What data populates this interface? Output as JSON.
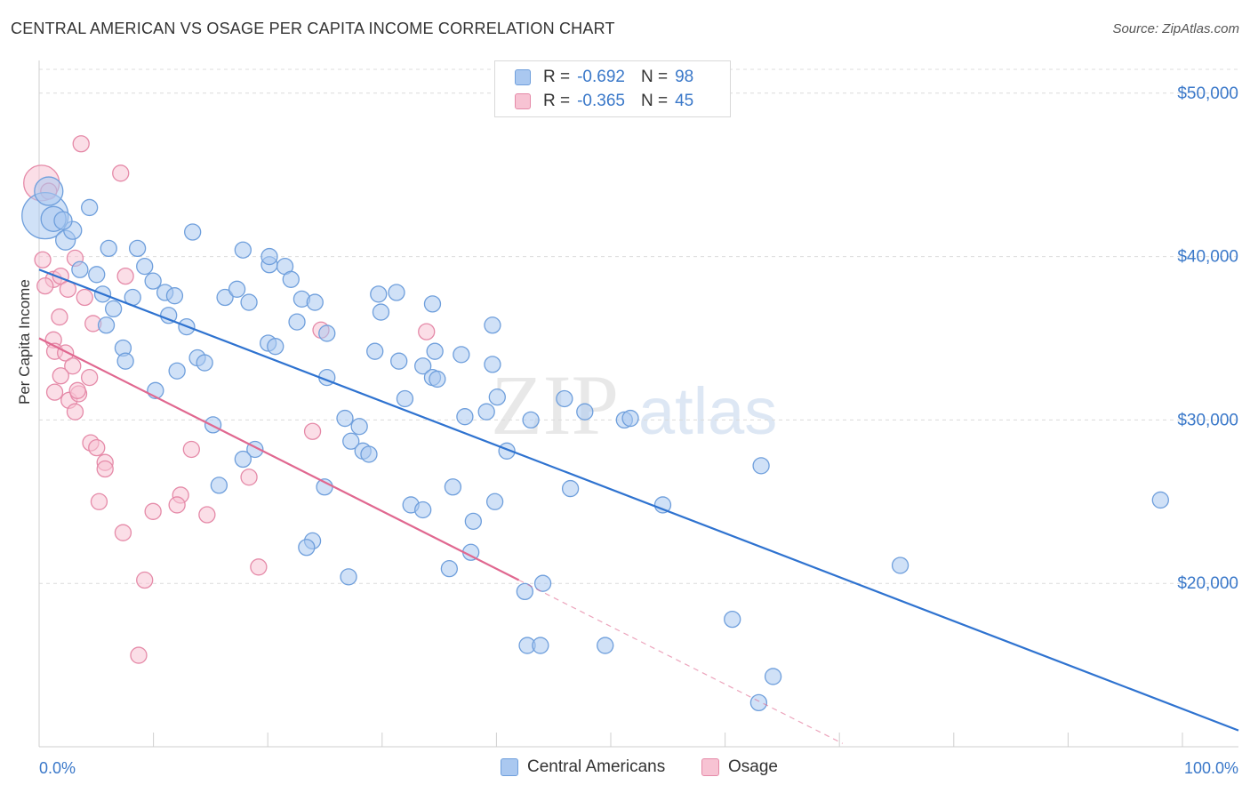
{
  "title": "CENTRAL AMERICAN VS OSAGE PER CAPITA INCOME CORRELATION CHART",
  "source": "Source: ZipAtlas.com",
  "watermark": {
    "zip": "ZIP",
    "atlas": "atlas"
  },
  "legend": {
    "rows": [
      {
        "r_label": "R =",
        "r_value": "-0.692",
        "n_label": "N =",
        "n_value": "98",
        "color": "#aac8f0",
        "border": "#6f9fdc"
      },
      {
        "r_label": "R =",
        "r_value": "-0.365",
        "n_label": "N =",
        "n_value": "45",
        "color": "#f7c3d3",
        "border": "#e58aa8"
      }
    ]
  },
  "bottom_legend": [
    {
      "label": "Central Americans",
      "color": "#aac8f0",
      "border": "#6f9fdc"
    },
    {
      "label": "Osage",
      "color": "#f7c3d3",
      "border": "#e58aa8"
    }
  ],
  "chart_data": {
    "type": "scatter",
    "title": "CENTRAL AMERICAN VS OSAGE PER CAPITA INCOME CORRELATION CHART",
    "xlabel": "",
    "ylabel": "Per Capita Income",
    "xlim": [
      0,
      100
    ],
    "ylim": [
      10000,
      52000
    ],
    "x_tick_labels": [
      "0.0%",
      "100.0%"
    ],
    "y_ticks": [
      20000,
      30000,
      40000,
      50000
    ],
    "y_tick_labels": [
      "$20,000",
      "$30,000",
      "$40,000",
      "$50,000"
    ],
    "grid": true,
    "series": [
      {
        "name": "Central Americans",
        "color": "#aac8f0",
        "stroke": "#6f9fdc",
        "line_color": "#2f73d0",
        "trend": {
          "x": [
            0,
            100
          ],
          "y": [
            39200,
            11000
          ]
        },
        "points": [
          [
            0.5,
            42500,
            26
          ],
          [
            0.8,
            44000,
            16
          ],
          [
            1.2,
            42300,
            14
          ],
          [
            2.2,
            41000,
            11
          ],
          [
            2.8,
            41600,
            10
          ],
          [
            2.0,
            42200,
            10
          ],
          [
            4.2,
            43000,
            9
          ],
          [
            3.4,
            39200,
            9
          ],
          [
            4.8,
            38900,
            9
          ],
          [
            5.8,
            40500,
            9
          ],
          [
            8.2,
            40500,
            9
          ],
          [
            12.8,
            41500,
            9
          ],
          [
            17.0,
            40400,
            9
          ],
          [
            19.2,
            39500,
            9
          ],
          [
            19.2,
            40000,
            9
          ],
          [
            20.5,
            39400,
            9
          ],
          [
            21.0,
            38600,
            9
          ],
          [
            8.8,
            39400,
            9
          ],
          [
            9.5,
            38500,
            9
          ],
          [
            10.5,
            37800,
            9
          ],
          [
            11.3,
            37600,
            9
          ],
          [
            7.8,
            37500,
            9
          ],
          [
            5.3,
            37700,
            9
          ],
          [
            6.2,
            36800,
            9
          ],
          [
            5.6,
            35800,
            9
          ],
          [
            10.8,
            36400,
            9
          ],
          [
            12.3,
            35700,
            9
          ],
          [
            15.5,
            37500,
            9
          ],
          [
            16.5,
            38000,
            9
          ],
          [
            17.5,
            37200,
            9
          ],
          [
            21.5,
            36000,
            9
          ],
          [
            21.9,
            37400,
            9
          ],
          [
            23.0,
            37200,
            9
          ],
          [
            24.0,
            35300,
            9
          ],
          [
            28.3,
            37700,
            9
          ],
          [
            29.8,
            37800,
            9
          ],
          [
            32.8,
            37100,
            9
          ],
          [
            28.5,
            36600,
            9
          ],
          [
            37.8,
            35800,
            9
          ],
          [
            7.0,
            34400,
            9
          ],
          [
            7.2,
            33600,
            9
          ],
          [
            11.5,
            33000,
            9
          ],
          [
            13.2,
            33800,
            9
          ],
          [
            13.8,
            33500,
            9
          ],
          [
            19.1,
            34700,
            9
          ],
          [
            19.7,
            34500,
            9
          ],
          [
            28.0,
            34200,
            9
          ],
          [
            30.0,
            33600,
            9
          ],
          [
            32.0,
            33300,
            9
          ],
          [
            33.0,
            34200,
            9
          ],
          [
            35.2,
            34000,
            9
          ],
          [
            37.8,
            33400,
            9
          ],
          [
            24.0,
            32600,
            9
          ],
          [
            32.8,
            32600,
            9
          ],
          [
            9.7,
            31800,
            9
          ],
          [
            30.5,
            31300,
            9
          ],
          [
            33.2,
            32500,
            9
          ],
          [
            38.2,
            31400,
            9
          ],
          [
            43.8,
            31300,
            9
          ],
          [
            14.5,
            29700,
            9
          ],
          [
            25.5,
            30100,
            9
          ],
          [
            26.7,
            29600,
            9
          ],
          [
            35.5,
            30200,
            9
          ],
          [
            37.3,
            30500,
            9
          ],
          [
            41.0,
            30000,
            9
          ],
          [
            45.5,
            30500,
            9
          ],
          [
            48.8,
            30000,
            9
          ],
          [
            49.3,
            30100,
            9
          ],
          [
            26.0,
            28700,
            9
          ],
          [
            27.0,
            28100,
            9
          ],
          [
            27.5,
            27900,
            9
          ],
          [
            18.0,
            28200,
            9
          ],
          [
            17.0,
            27600,
            9
          ],
          [
            39.0,
            28100,
            9
          ],
          [
            60.2,
            27200,
            9
          ],
          [
            15.0,
            26000,
            9
          ],
          [
            23.8,
            25900,
            9
          ],
          [
            34.5,
            25900,
            9
          ],
          [
            31.0,
            24800,
            9
          ],
          [
            32.0,
            24500,
            9
          ],
          [
            38.0,
            25000,
            9
          ],
          [
            44.3,
            25800,
            9
          ],
          [
            52.0,
            24800,
            9
          ],
          [
            36.2,
            23800,
            9
          ],
          [
            22.8,
            22600,
            9
          ],
          [
            22.3,
            22200,
            9
          ],
          [
            36.0,
            21900,
            9
          ],
          [
            34.2,
            20900,
            9
          ],
          [
            25.8,
            20400,
            9
          ],
          [
            40.5,
            19500,
            9
          ],
          [
            42.0,
            20000,
            9
          ],
          [
            71.8,
            21100,
            9
          ],
          [
            93.5,
            25100,
            9
          ],
          [
            57.8,
            17800,
            9
          ],
          [
            40.7,
            16200,
            9
          ],
          [
            41.8,
            16200,
            9
          ],
          [
            47.2,
            16200,
            9
          ],
          [
            61.2,
            14300,
            9
          ],
          [
            60.0,
            12700,
            9
          ]
        ]
      },
      {
        "name": "Osage",
        "color": "#f7c3d3",
        "stroke": "#e58aa8",
        "line_color": "#e06890",
        "trend": {
          "x": [
            0,
            40
          ],
          "y": [
            35000,
            20200
          ]
        },
        "trend_extension": {
          "x": [
            40,
            67
          ],
          "y": [
            20200,
            10200
          ]
        },
        "points": [
          [
            0.2,
            44500,
            20
          ],
          [
            0.8,
            44000,
            9
          ],
          [
            3.5,
            46900,
            9
          ],
          [
            6.8,
            45100,
            9
          ],
          [
            0.3,
            39800,
            9
          ],
          [
            1.2,
            38600,
            9
          ],
          [
            0.5,
            38200,
            9
          ],
          [
            3.0,
            39900,
            9
          ],
          [
            1.8,
            38800,
            9
          ],
          [
            2.4,
            38000,
            9
          ],
          [
            7.2,
            38800,
            9
          ],
          [
            3.8,
            37500,
            9
          ],
          [
            1.7,
            36300,
            9
          ],
          [
            4.5,
            35900,
            9
          ],
          [
            23.5,
            35500,
            9
          ],
          [
            32.3,
            35400,
            9
          ],
          [
            1.2,
            34900,
            9
          ],
          [
            1.3,
            34200,
            9
          ],
          [
            2.2,
            34100,
            9
          ],
          [
            2.8,
            33300,
            9
          ],
          [
            1.8,
            32700,
            9
          ],
          [
            4.2,
            32600,
            9
          ],
          [
            1.3,
            31700,
            9
          ],
          [
            2.5,
            31200,
            9
          ],
          [
            3.3,
            31600,
            9
          ],
          [
            3.0,
            30500,
            9
          ],
          [
            3.2,
            31800,
            9
          ],
          [
            22.8,
            29300,
            9
          ],
          [
            4.3,
            28600,
            9
          ],
          [
            4.8,
            28300,
            9
          ],
          [
            12.7,
            28200,
            9
          ],
          [
            5.5,
            27400,
            9
          ],
          [
            5.5,
            27000,
            9
          ],
          [
            17.5,
            26500,
            9
          ],
          [
            5.0,
            25000,
            9
          ],
          [
            11.8,
            25400,
            9
          ],
          [
            9.5,
            24400,
            9
          ],
          [
            11.5,
            24800,
            9
          ],
          [
            14.0,
            24200,
            9
          ],
          [
            7.0,
            23100,
            9
          ],
          [
            18.3,
            21000,
            9
          ],
          [
            8.8,
            20200,
            9
          ],
          [
            8.3,
            15600,
            9
          ]
        ]
      }
    ]
  }
}
